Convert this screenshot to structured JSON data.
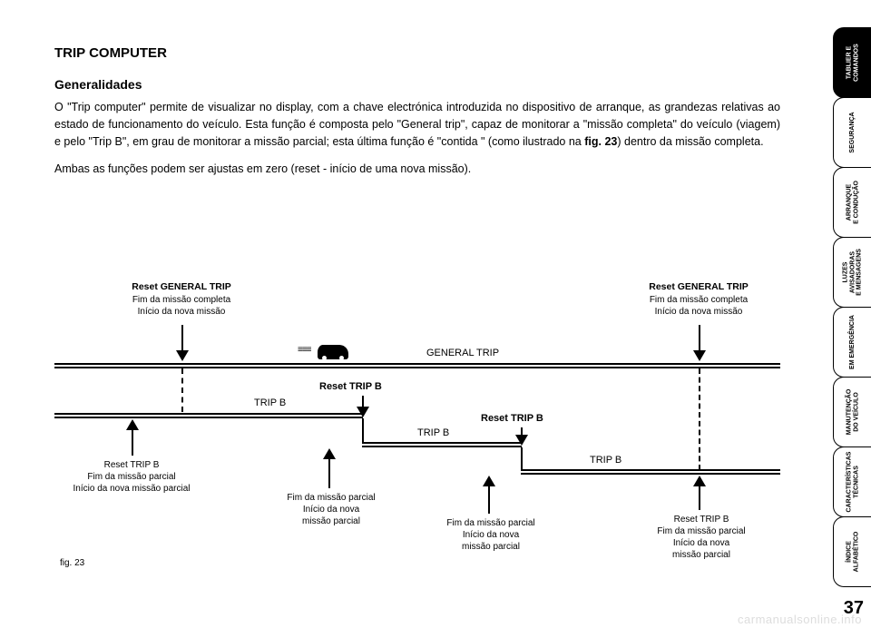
{
  "title": "TRIP COMPUTER",
  "subtitle": "Generalidades",
  "para1_a": "O \"Trip computer\" permite de visualizar no display, com a chave electrónica introduzida no dispositivo de arranque, as grandezas relativas ao estado de funcionamento do veículo. Esta função é composta pelo \"General trip\", capaz de monitorar a \"missão completa\" do veículo (viagem) e pelo \"Trip B\", em grau de monitorar a missão parcial; esta última função é \"contida \" (como ilustrado na ",
  "para1_b": "fig. 23",
  "para1_c": ") dentro da missão completa.",
  "para2": "Ambas as funções podem ser ajustas em zero (reset - início de uma nova missão).",
  "diagram": {
    "general_trip": "GENERAL TRIP",
    "trip_b": "TRIP B",
    "reset_general_title": "Reset GENERAL TRIP",
    "reset_general_l1": "Fim da missão completa",
    "reset_general_l2": "Início da nova missão",
    "reset_tripb_title": "Reset TRIP B",
    "reset_tripb_a1": "Reset TRIP B",
    "reset_tripb_a2": "Fim da missão parcial",
    "reset_tripb_a3": "Início da nova missão parcial",
    "end_partial1": "Fim da missão parcial",
    "end_partial2": "Início da nova",
    "end_partial3": "missão parcial",
    "reset_tripb_r1": "Reset TRIP B",
    "reset_tripb_r2": "Fim da missão parcial",
    "reset_tripb_r3": "Início da nova",
    "reset_tripb_r4": "missão parcial",
    "fig": "fig. 23"
  },
  "tabs": [
    "TABLIER E\nCOMANDOS",
    "SEGURANÇA",
    "ARRANQUE\nE CONDUÇÃO",
    "LUZES\nAVISADORAS\nE MENSAGENS",
    "EM EMERGÊNCIA",
    "MANUTENÇÃO\nDO VEÍCULO",
    "CARACTERÍSTICAS\nTÉCNICAS",
    "ÍNDICE\nALFABÉTICO"
  ],
  "page": "37",
  "watermark": "carmanualsonline.info"
}
